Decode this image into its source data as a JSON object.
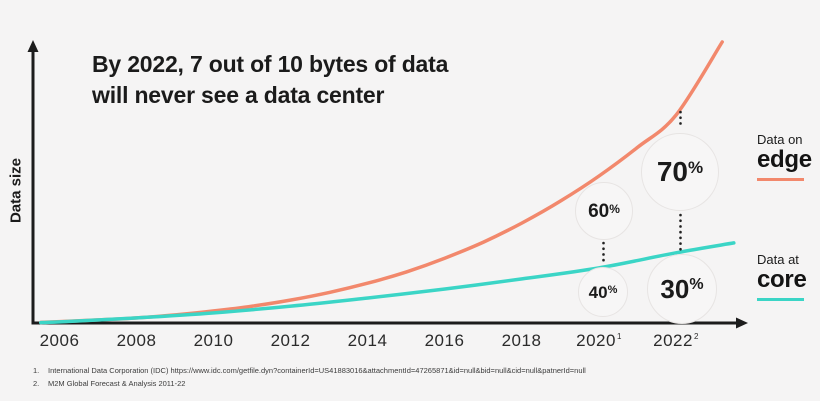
{
  "slide": {
    "title_line1": "By 2022, 7 out of 10 bytes of data",
    "title_line2": "will never see a data center"
  },
  "y_axis": {
    "label": "Data size"
  },
  "x_axis": {
    "ticks": [
      {
        "label": "2006"
      },
      {
        "label": "2008"
      },
      {
        "label": "2010"
      },
      {
        "label": "2012"
      },
      {
        "label": "2014"
      },
      {
        "label": "2016"
      },
      {
        "label": "2018"
      },
      {
        "label": "2020",
        "sup": "1"
      },
      {
        "label": "2022",
        "sup": "2"
      }
    ]
  },
  "legend": {
    "edge_prefix": "Data on",
    "edge_name": "edge",
    "core_prefix": "Data at",
    "core_name": "core"
  },
  "colors": {
    "edge": "#F2886C",
    "core": "#3BD5C6",
    "background": "#F5F4F4",
    "ink": "#1B1B1B",
    "bubble_fill": "#F7F6F6",
    "bubble_border": "#E7E4E3"
  },
  "footnotes": [
    {
      "num": "1.",
      "text": "International Data Corporation (IDC) https://www.idc.com/getfile.dyn?containerId=US41883016&attachmentId=47265871&id=null&bid=null&cid=null&patnerId=null"
    },
    {
      "num": "2.",
      "text": "M2M Global Forecast & Analysis 2011-22"
    }
  ],
  "chart_data": {
    "type": "line",
    "title": "By 2022, 7 out of 10 bytes of data will never see a data center",
    "xlabel": "",
    "ylabel": "Data size",
    "x_tick_labels": [
      "2006",
      "2008",
      "2010",
      "2012",
      "2014",
      "2016",
      "2018",
      "2020",
      "2022"
    ],
    "y_axis_values_shown": false,
    "values_note": "y values normalized 0-100 (relative data size estimated from curve heights; original chart has no numeric y axis)",
    "legend_position": "right",
    "grid": false,
    "series": [
      {
        "name": "Data on edge",
        "color": "#F2886C",
        "x": [
          2005.5,
          2006,
          2007,
          2008,
          2009,
          2010,
          2011,
          2012,
          2013,
          2014,
          2015,
          2016,
          2017,
          2018,
          2019,
          2020,
          2021,
          2022,
          2023.2
        ],
        "values": [
          0.2,
          0.5,
          1.1,
          1.8,
          2.9,
          4.3,
          6.0,
          8.2,
          10.9,
          14.2,
          18.2,
          23.1,
          28.8,
          35.6,
          43.4,
          52.3,
          62.5,
          74.0,
          100
        ]
      },
      {
        "name": "Data at core",
        "color": "#3BD5C6",
        "x": [
          2005.5,
          2006,
          2008,
          2010,
          2012,
          2014,
          2016,
          2018,
          2020,
          2022,
          2023.5
        ],
        "values": [
          0.15,
          0.4,
          1.8,
          3.6,
          6.0,
          8.9,
          12.1,
          15.7,
          19.6,
          25.0,
          28.5
        ]
      }
    ],
    "annotations": [
      {
        "x": "2020",
        "series": "Data on edge",
        "value": "60",
        "unit": "%"
      },
      {
        "x": "2022",
        "series": "Data on edge",
        "value": "70",
        "unit": "%"
      },
      {
        "x": "2020",
        "series": "Data at core",
        "value": "40",
        "unit": "%"
      },
      {
        "x": "2022",
        "series": "Data at core",
        "value": "30",
        "unit": "%"
      }
    ]
  }
}
